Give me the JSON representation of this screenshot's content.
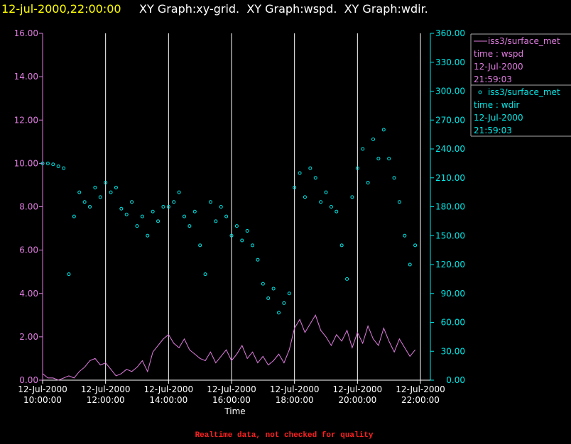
{
  "chart_data": {
    "type": "line-scatter",
    "title": "12-jul-2000,22:00:00",
    "subtitle": "XY Graph:xy-grid.  XY Graph:wspd.  XY Graph:wdir.",
    "xlabel": "Time",
    "footer": "Realtime data, not checked for quality",
    "x": [
      "2000-07-12T10:00",
      "2000-07-12T10:10",
      "2000-07-12T10:20",
      "2000-07-12T10:30",
      "2000-07-12T10:40",
      "2000-07-12T10:50",
      "2000-07-12T11:00",
      "2000-07-12T11:10",
      "2000-07-12T11:20",
      "2000-07-12T11:30",
      "2000-07-12T11:40",
      "2000-07-12T11:50",
      "2000-07-12T12:00",
      "2000-07-12T12:10",
      "2000-07-12T12:20",
      "2000-07-12T12:30",
      "2000-07-12T12:40",
      "2000-07-12T12:50",
      "2000-07-12T13:00",
      "2000-07-12T13:10",
      "2000-07-12T13:20",
      "2000-07-12T13:30",
      "2000-07-12T13:40",
      "2000-07-12T13:50",
      "2000-07-12T14:00",
      "2000-07-12T14:10",
      "2000-07-12T14:20",
      "2000-07-12T14:30",
      "2000-07-12T14:40",
      "2000-07-12T14:50",
      "2000-07-12T15:00",
      "2000-07-12T15:10",
      "2000-07-12T15:20",
      "2000-07-12T15:30",
      "2000-07-12T15:40",
      "2000-07-12T15:50",
      "2000-07-12T16:00",
      "2000-07-12T16:10",
      "2000-07-12T16:20",
      "2000-07-12T16:30",
      "2000-07-12T16:40",
      "2000-07-12T16:50",
      "2000-07-12T17:00",
      "2000-07-12T17:10",
      "2000-07-12T17:20",
      "2000-07-12T17:30",
      "2000-07-12T17:40",
      "2000-07-12T17:50",
      "2000-07-12T18:00",
      "2000-07-12T18:10",
      "2000-07-12T18:20",
      "2000-07-12T18:30",
      "2000-07-12T18:40",
      "2000-07-12T18:50",
      "2000-07-12T19:00",
      "2000-07-12T19:10",
      "2000-07-12T19:20",
      "2000-07-12T19:30",
      "2000-07-12T19:40",
      "2000-07-12T19:50",
      "2000-07-12T20:00",
      "2000-07-12T20:10",
      "2000-07-12T20:20",
      "2000-07-12T20:30",
      "2000-07-12T20:40",
      "2000-07-12T20:50",
      "2000-07-12T21:00",
      "2000-07-12T21:10",
      "2000-07-12T21:20",
      "2000-07-12T21:30",
      "2000-07-12T21:40",
      "2000-07-12T21:50"
    ],
    "xlim": [
      "2000-07-12T10:00",
      "2000-07-12T22:00"
    ],
    "xticks": [
      {
        "value": "2000-07-12T10:00",
        "label": [
          "12-Jul-2000",
          "10:00:00"
        ]
      },
      {
        "value": "2000-07-12T12:00",
        "label": [
          "12-Jul-2000",
          "12:00:00"
        ]
      },
      {
        "value": "2000-07-12T14:00",
        "label": [
          "12-Jul-2000",
          "14:00:00"
        ]
      },
      {
        "value": "2000-07-12T16:00",
        "label": [
          "12-Jul-2000",
          "16:00:00"
        ]
      },
      {
        "value": "2000-07-12T18:00",
        "label": [
          "12-Jul-2000",
          "18:00:00"
        ]
      },
      {
        "value": "2000-07-12T20:00",
        "label": [
          "12-Jul-2000",
          "20:00:00"
        ]
      },
      {
        "value": "2000-07-12T22:00",
        "label": [
          "12-Jul-2000",
          "22:00:00"
        ]
      }
    ],
    "ylim": [
      0,
      16
    ],
    "yticks": [
      {
        "value": 0,
        "label": "0.00"
      },
      {
        "value": 2,
        "label": "2.00"
      },
      {
        "value": 4,
        "label": "4.00"
      },
      {
        "value": 6,
        "label": "6.00"
      },
      {
        "value": 8,
        "label": "8.00"
      },
      {
        "value": 10,
        "label": "10.00"
      },
      {
        "value": 12,
        "label": "12.00"
      },
      {
        "value": 14,
        "label": "14.00"
      },
      {
        "value": 16,
        "label": "16.00"
      }
    ],
    "y2lim": [
      0,
      360
    ],
    "y2ticks": [
      {
        "value": 0,
        "label": "0.00"
      },
      {
        "value": 30,
        "label": "30.00"
      },
      {
        "value": 60,
        "label": "60.00"
      },
      {
        "value": 90,
        "label": "90.00"
      },
      {
        "value": 120,
        "label": "120.00"
      },
      {
        "value": 150,
        "label": "150.00"
      },
      {
        "value": 180,
        "label": "180.00"
      },
      {
        "value": 210,
        "label": "210.00"
      },
      {
        "value": 240,
        "label": "240.00"
      },
      {
        "value": 270,
        "label": "270.00"
      },
      {
        "value": 300,
        "label": "300.00"
      },
      {
        "value": 330,
        "label": "330.00"
      },
      {
        "value": 360,
        "label": "360.00"
      }
    ],
    "grid": true,
    "series": [
      {
        "name": "iss3/surface_met",
        "legend_lines": [
          "time : wspd",
          "12-Jul-2000",
          "21:59:03"
        ],
        "color": "#e07ce0",
        "mark": "line",
        "values": [
          0.3,
          0.1,
          0.1,
          0.0,
          0.1,
          0.2,
          0.1,
          0.4,
          0.6,
          0.9,
          1.0,
          0.7,
          0.8,
          0.5,
          0.2,
          0.3,
          0.5,
          0.4,
          0.6,
          0.9,
          0.4,
          1.3,
          1.6,
          1.9,
          2.1,
          1.7,
          1.5,
          1.9,
          1.4,
          1.2,
          1.0,
          0.9,
          1.3,
          0.8,
          1.1,
          1.4,
          0.9,
          1.2,
          1.6,
          1.0,
          1.3,
          0.8,
          1.1,
          0.7,
          0.9,
          1.2,
          0.8,
          1.4,
          2.4,
          2.8,
          2.2,
          2.6,
          3.0,
          2.3,
          2.0,
          1.6,
          2.1,
          1.8,
          2.3,
          1.5,
          2.2,
          1.7,
          2.5,
          1.9,
          1.6,
          2.4,
          1.8,
          1.3,
          1.9,
          1.5,
          1.1,
          1.4
        ]
      },
      {
        "name": "iss3/surface_met",
        "legend_lines": [
          "time : wdir",
          "12-Jul-2000",
          "21:59:03"
        ],
        "color": "#00e8e8",
        "mark": "scatter",
        "axis": "y2",
        "values": [
          225,
          225,
          224,
          222,
          220,
          110,
          170,
          195,
          185,
          180,
          200,
          190,
          205,
          195,
          200,
          178,
          172,
          185,
          160,
          170,
          150,
          175,
          165,
          180,
          180,
          185,
          195,
          170,
          160,
          175,
          140,
          110,
          185,
          165,
          180,
          170,
          150,
          160,
          145,
          155,
          140,
          125,
          100,
          85,
          95,
          70,
          80,
          90,
          200,
          215,
          190,
          220,
          210,
          185,
          195,
          180,
          175,
          140,
          105,
          190,
          220,
          240,
          205,
          250,
          230,
          260,
          230,
          210,
          185,
          150,
          120,
          140
        ]
      }
    ]
  }
}
